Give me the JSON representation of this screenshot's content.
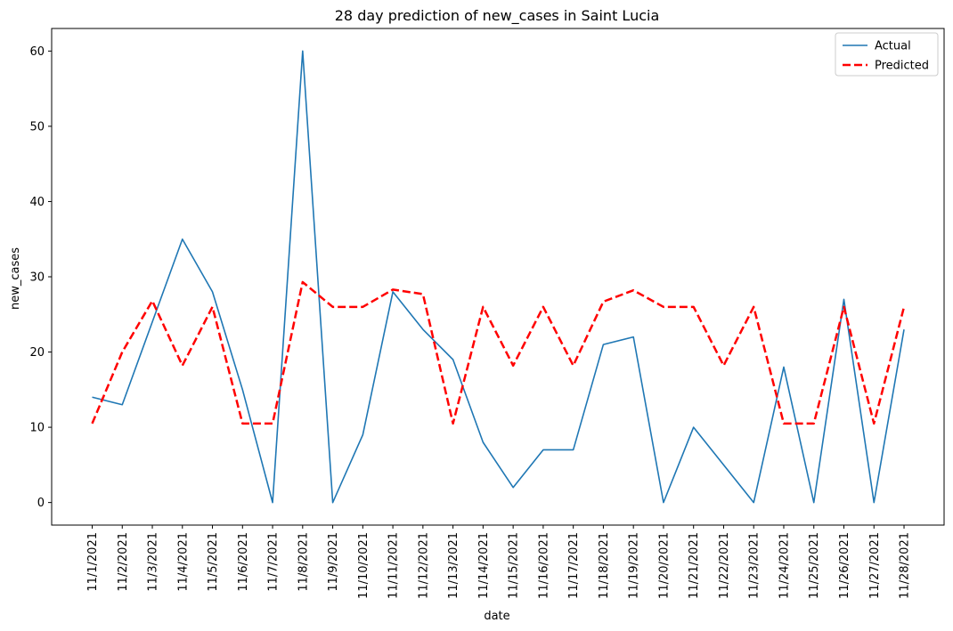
{
  "chart_data": {
    "type": "line",
    "title": "28 day prediction of new_cases in Saint Lucia",
    "xlabel": "date",
    "ylabel": "new_cases",
    "x": [
      "11/1/2021",
      "11/2/2021",
      "11/3/2021",
      "11/4/2021",
      "11/5/2021",
      "11/6/2021",
      "11/7/2021",
      "11/8/2021",
      "11/9/2021",
      "11/10/2021",
      "11/11/2021",
      "11/12/2021",
      "11/13/2021",
      "11/14/2021",
      "11/15/2021",
      "11/16/2021",
      "11/17/2021",
      "11/18/2021",
      "11/19/2021",
      "11/20/2021",
      "11/21/2021",
      "11/22/2021",
      "11/23/2021",
      "11/24/2021",
      "11/25/2021",
      "11/26/2021",
      "11/27/2021",
      "11/28/2021"
    ],
    "ylim": [
      -3,
      63
    ],
    "yticks": [
      0,
      10,
      20,
      30,
      40,
      50,
      60
    ],
    "grid": false,
    "legend_position": "top-right",
    "series": [
      {
        "name": "Actual",
        "color": "#1f77b4",
        "style": "solid",
        "values": [
          14,
          13,
          24,
          35,
          28,
          15,
          0,
          60,
          0,
          9,
          28,
          23,
          19,
          8,
          2,
          7,
          7,
          21,
          22,
          0,
          10,
          5,
          0,
          18,
          0,
          27,
          0,
          23
        ]
      },
      {
        "name": "Predicted",
        "color": "#ff0000",
        "style": "dashed",
        "values": [
          10.5,
          20,
          26.8,
          18.2,
          26,
          10.5,
          10.5,
          29.3,
          26,
          26,
          28.3,
          27.7,
          10.5,
          26,
          18.2,
          26,
          18.2,
          26.7,
          28.2,
          26,
          26,
          18.2,
          26,
          10.5,
          10.5,
          26,
          10.5,
          26
        ]
      }
    ]
  }
}
